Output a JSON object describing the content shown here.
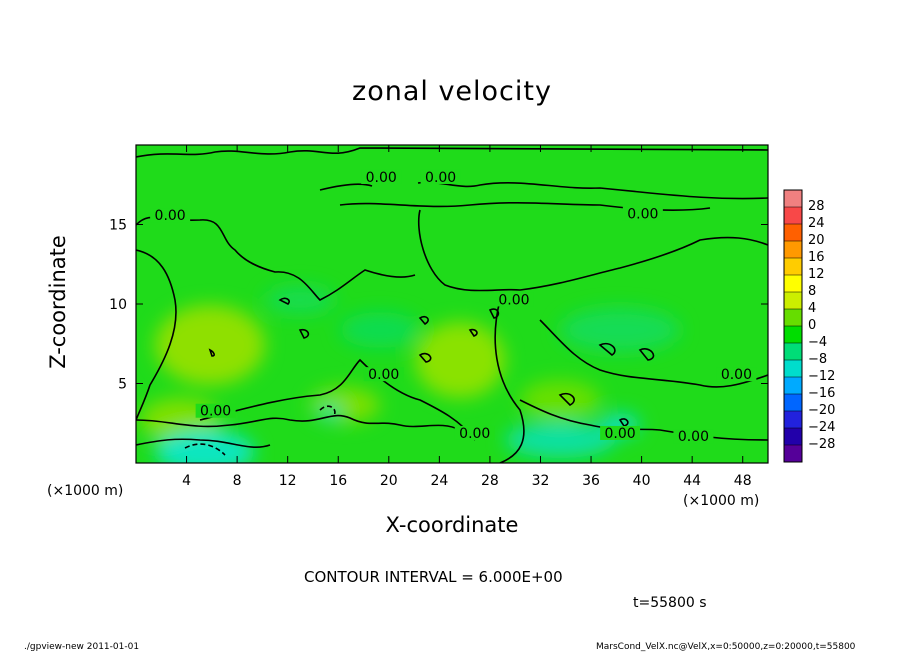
{
  "chart_data": {
    "type": "heatmap",
    "title": "zonal velocity",
    "xlabel": "X-coordinate",
    "ylabel": "Z-coordinate",
    "x_unit": "(×1000 m)",
    "xlim": [
      0,
      50
    ],
    "ylim": [
      0,
      20
    ],
    "x_ticks": [
      "4",
      "8",
      "12",
      "16",
      "20",
      "24",
      "28",
      "32",
      "36",
      "40",
      "44",
      "48"
    ],
    "y_ticks": [
      "5",
      "10",
      "15"
    ],
    "colorbar_levels": [
      "28",
      "24",
      "20",
      "16",
      "12",
      "8",
      "4",
      "0",
      "−4",
      "−8",
      "−12",
      "−16",
      "−20",
      "−24",
      "−28"
    ],
    "colorbar_colors": [
      "#f08080",
      "#f84848",
      "#ff6000",
      "#ff9900",
      "#ffcc00",
      "#ffff00",
      "#ccee00",
      "#66dd00",
      "#00dd00",
      "#00dd77",
      "#00ddcc",
      "#00aaff",
      "#0066ff",
      "#2222dd",
      "#2200aa",
      "#550099"
    ],
    "contour_labels": [
      "0.00",
      "0.00",
      "0.00",
      "0.00",
      "0.00",
      "0.00",
      "0.00",
      "0.00",
      "0.00",
      "0.00",
      "0.00"
    ],
    "contour_interval": "CONTOUR INTERVAL = 6.000E+00",
    "time": "t=55800 s",
    "approx_field": "u mostly between -6 and +6; positive (yellow-green) patches near x≈4-8, z≈5-8 and x≈22-28, z≈3-7; negative (cyan) patches near surface at x≈5 and x≈30-40"
  },
  "footer": {
    "left": "./gpview-new   2011-01-01",
    "right": "MarsCond_VelX.nc@VelX,x=0:50000,z=0:20000,t=55800"
  }
}
